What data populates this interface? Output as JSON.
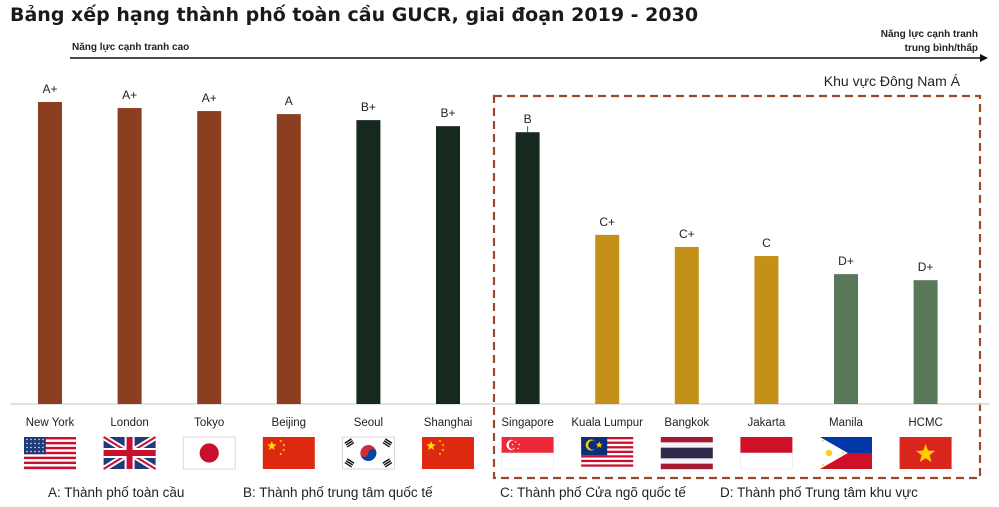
{
  "title": "Bảng xếp hạng thành phố toàn cầu GUCR, giai đoạn 2019 - 2030",
  "arrow": {
    "left_label": "Năng lực cạnh tranh cao",
    "right_label_line1": "Năng lực cạnh tranh",
    "right_label_line2": "trung bình/thấp"
  },
  "region_label": "Khu vực Đông Nam Á",
  "legend": [
    {
      "text": "A: Thành phố toàn cầu"
    },
    {
      "text": "B: Thành phố trung tâm quốc tế"
    },
    {
      "text": "C: Thành phố Cửa ngõ quốc tế"
    },
    {
      "text": "D: Thành phố Trung tâm khu vực"
    }
  ],
  "colors": {
    "A": "#8b3f1f",
    "B": "#16291f",
    "C": "#c39118",
    "D": "#587859",
    "region_border": "#9a4a2a"
  },
  "chart_data": {
    "type": "bar",
    "categories": [
      "New York",
      "London",
      "Tokyo",
      "Beijing",
      "Seoul",
      "Shanghai",
      "Singapore",
      "Kuala Lumpur",
      "Bangkok",
      "Jakarta",
      "Manila",
      "HCMC"
    ],
    "values": [
      100,
      98,
      97,
      96,
      94,
      92,
      90,
      56,
      52,
      49,
      43,
      41
    ],
    "ylim": [
      0,
      100
    ],
    "value_meaning": "relative ranking (unlabeled axis)",
    "grades": [
      "A+",
      "A+",
      "A+",
      "A",
      "B+",
      "B+",
      "B",
      "C+",
      "C+",
      "C",
      "D+",
      "D+"
    ],
    "grade_class": [
      "A",
      "A",
      "A",
      "A",
      "B",
      "B",
      "B",
      "C",
      "C",
      "C",
      "D",
      "D"
    ],
    "flags": [
      "usa-flag",
      "uk-flag",
      "japan-flag",
      "china-flag",
      "south-korea-flag",
      "china-flag",
      "singapore-flag",
      "malaysia-flag",
      "thailand-flag",
      "indonesia-flag",
      "philippines-flag",
      "vietnam-flag"
    ],
    "xlabel": "",
    "ylabel": "",
    "grid": false
  }
}
